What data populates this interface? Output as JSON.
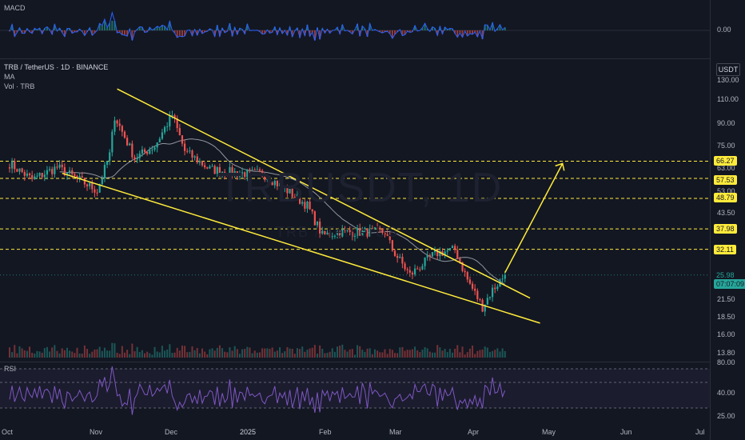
{
  "header": {
    "symbol_line": "TRB / TetherUS · 1D · BINANCE",
    "ma_label": "MA",
    "vol_label": "Vol · TRB"
  },
  "macd_panel": {
    "label": "MACD",
    "zero_label": "0.00"
  },
  "rsi_panel": {
    "label": "RSI",
    "ticks": [
      "80.00",
      "40.00",
      "25.00"
    ]
  },
  "watermark": {
    "main": "TRBUSDT, 1D",
    "sub": "TRB / TetherUS"
  },
  "currency_button": "USDT",
  "colors": {
    "background": "#131722",
    "up": "#26a69a",
    "down": "#ef5350",
    "trendline": "#ffeb3b",
    "ma": "#b2b5be",
    "rsi": "#7e57c2"
  },
  "chart_data": {
    "type": "candlestick",
    "symbol": "TRB / TetherUS",
    "timeframe": "1D",
    "exchange": "BINANCE",
    "y_axis_scale": "log",
    "y_ticks": [
      "130.00",
      "110.00",
      "90.00",
      "75.00",
      "63.00",
      "53.00",
      "43.50",
      "21.50",
      "18.50",
      "16.00",
      "13.80"
    ],
    "x_ticks": [
      "Oct",
      "Nov",
      "Dec",
      "2025",
      "Feb",
      "Mar",
      "Apr",
      "May",
      "Jun",
      "Jul"
    ],
    "horizontal_levels": [
      "66.27",
      "57.53",
      "48.79",
      "37.98",
      "32.11"
    ],
    "current_price": "25.98",
    "countdown": "07:07:09",
    "pattern": "falling wedge",
    "upper_trendline": [
      {
        "x": "2024-11-13",
        "y": 120
      },
      {
        "x": "2025-04-27",
        "y": 21.5
      }
    ],
    "lower_trendline": [
      {
        "x": "2024-10-22",
        "y": 60
      },
      {
        "x": "2025-05-01",
        "y": 17.5
      }
    ],
    "projection_arrow": [
      {
        "x": "2025-04-17",
        "y": 26.5
      },
      {
        "x": "2025-05-10",
        "y": 65
      }
    ],
    "close_path": [
      {
        "x": "2024-10-01",
        "y": 65
      },
      {
        "x": "2024-10-10",
        "y": 57
      },
      {
        "x": "2024-10-20",
        "y": 63
      },
      {
        "x": "2024-10-30",
        "y": 56
      },
      {
        "x": "2024-11-05",
        "y": 52
      },
      {
        "x": "2024-11-10",
        "y": 70
      },
      {
        "x": "2024-11-12",
        "y": 96
      },
      {
        "x": "2024-11-20",
        "y": 68
      },
      {
        "x": "2024-11-28",
        "y": 75
      },
      {
        "x": "2024-12-05",
        "y": 97
      },
      {
        "x": "2024-12-10",
        "y": 72
      },
      {
        "x": "2024-12-20",
        "y": 62
      },
      {
        "x": "2025-01-01",
        "y": 60
      },
      {
        "x": "2025-01-10",
        "y": 60
      },
      {
        "x": "2025-01-20",
        "y": 52
      },
      {
        "x": "2025-01-28",
        "y": 46
      },
      {
        "x": "2025-02-03",
        "y": 36
      },
      {
        "x": "2025-02-10",
        "y": 37
      },
      {
        "x": "2025-02-20",
        "y": 37
      },
      {
        "x": "2025-02-28",
        "y": 37
      },
      {
        "x": "2025-03-03",
        "y": 32
      },
      {
        "x": "2025-03-10",
        "y": 26
      },
      {
        "x": "2025-03-20",
        "y": 31
      },
      {
        "x": "2025-03-28",
        "y": 32
      },
      {
        "x": "2025-04-02",
        "y": 25
      },
      {
        "x": "2025-04-08",
        "y": 20
      },
      {
        "x": "2025-04-12",
        "y": 23
      },
      {
        "x": "2025-04-17",
        "y": 25.98
      }
    ]
  }
}
